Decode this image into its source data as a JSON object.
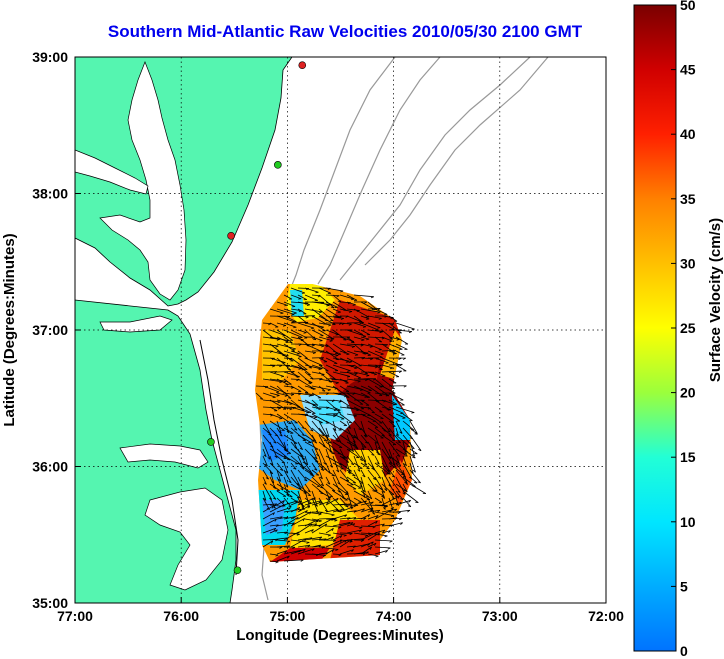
{
  "title": "Southern Mid-Atlantic Raw Velocities 2010/05/30 2100 GMT",
  "x_axis": {
    "label": "Longitude (Degrees:Minutes)",
    "ticks": [
      "77:00",
      "76:00",
      "75:00",
      "74:00",
      "73:00",
      "72:00"
    ]
  },
  "y_axis": {
    "label": "Latitude (Degrees:Minutes)",
    "ticks": [
      "39:00",
      "38:00",
      "37:00",
      "36:00",
      "35:00"
    ]
  },
  "colorbar": {
    "label": "Surface Velocity (cm/s)",
    "ticks": [
      "50",
      "45",
      "40",
      "35",
      "30",
      "25",
      "20",
      "15",
      "10",
      "5",
      "0"
    ],
    "min": 0,
    "max": 50
  },
  "colors": {
    "land": "#55f5b0",
    "title": "#0000ee",
    "bathymetry": "#999999",
    "station_green": "#22cc22",
    "station_red": "#dd2222"
  },
  "chart_data": {
    "type": "heatmap",
    "title": "Southern Mid-Atlantic Raw Velocities 2010/05/30 2100 GMT",
    "xlabel": "Longitude (Degrees:Minutes)",
    "ylabel": "Latitude (Degrees:Minutes)",
    "xlim": [
      -77,
      -72
    ],
    "ylim": [
      35,
      39
    ],
    "colorbar_range": [
      0,
      50
    ],
    "colorbar_label": "Surface Velocity (cm/s)",
    "grid": true,
    "stations": [
      {
        "lon": -74.86,
        "lat": 38.94,
        "color": "red"
      },
      {
        "lon": -75.09,
        "lat": 38.21,
        "color": "green"
      },
      {
        "lon": -75.53,
        "lat": 37.69,
        "color": "red"
      },
      {
        "lon": -75.72,
        "lat": 36.18,
        "color": "green"
      },
      {
        "lon": -75.47,
        "lat": 35.24,
        "color": "green"
      }
    ]
  }
}
